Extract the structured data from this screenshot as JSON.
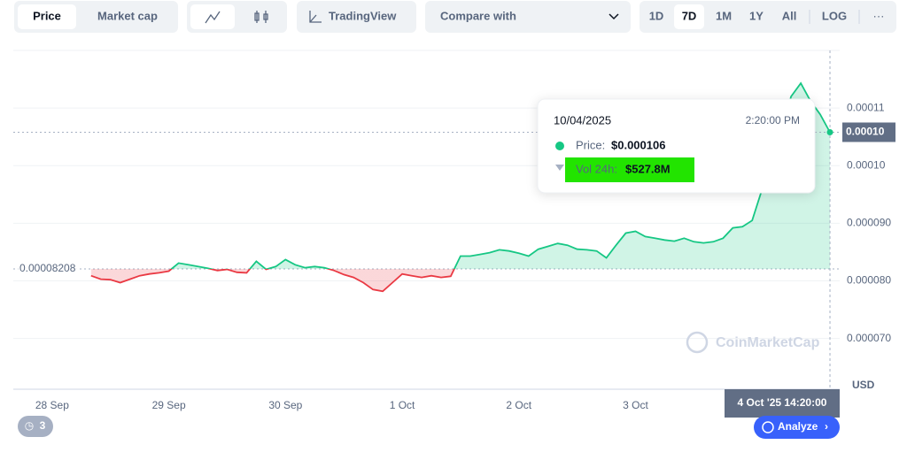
{
  "toolbar": {
    "tabs": [
      "Price",
      "Market cap"
    ],
    "tradingview": "TradingView",
    "compare": "Compare with",
    "ranges": [
      "1D",
      "7D",
      "1M",
      "1Y",
      "All"
    ],
    "log": "LOG",
    "more": "···"
  },
  "chart_data": {
    "type": "line",
    "values": [
      8.09e-05,
      8.03e-05,
      8.02e-05,
      7.97e-05,
      8.03e-05,
      8.09e-05,
      8.12e-05,
      8.14e-05,
      8.17e-05,
      8.31e-05,
      8.28e-05,
      8.25e-05,
      8.22e-05,
      8.18e-05,
      8.2e-05,
      8.15e-05,
      8.14e-05,
      8.34e-05,
      8.2e-05,
      8.25e-05,
      8.37e-05,
      8.28e-05,
      8.23e-05,
      8.25e-05,
      8.23e-05,
      8.18e-05,
      8.11e-05,
      8.06e-05,
      7.97e-05,
      7.85e-05,
      7.82e-05,
      7.97e-05,
      8.12e-05,
      8.09e-05,
      8.06e-05,
      8.09e-05,
      8.06e-05,
      8.08e-05,
      8.43e-05,
      8.43e-05,
      8.46e-05,
      8.49e-05,
      8.54e-05,
      8.52e-05,
      8.48e-05,
      8.43e-05,
      8.55e-05,
      8.6e-05,
      8.65e-05,
      8.62e-05,
      8.55e-05,
      8.54e-05,
      8.52e-05,
      8.4e-05,
      8.62e-05,
      8.83e-05,
      8.86e-05,
      8.77e-05,
      8.74e-05,
      8.71e-05,
      8.69e-05,
      8.74e-05,
      8.68e-05,
      8.66e-05,
      8.68e-05,
      8.74e-05,
      8.92e-05,
      8.94e-05,
      9.05e-05,
      9.58e-05,
      0.0001012,
      0.0001058,
      0.000112,
      0.0001143,
      0.0001112,
      0.0001089,
      0.0001058
    ],
    "xlim": [
      -8,
      77
    ],
    "xticks": [
      {
        "value": -4,
        "label": "28 Sep"
      },
      {
        "value": 8,
        "label": "29 Sep"
      },
      {
        "value": 20,
        "label": "30 Sep"
      },
      {
        "value": 32,
        "label": "1 Oct"
      },
      {
        "value": 44,
        "label": "2 Oct"
      },
      {
        "value": 56,
        "label": "3 Oct"
      }
    ],
    "ylim": [
      6.12e-05,
      0.00012
    ],
    "yticks": [
      {
        "value": 7e-05,
        "label": "0.000070"
      },
      {
        "value": 8e-05,
        "label": "0.000080"
      },
      {
        "value": 9e-05,
        "label": "0.000090"
      },
      {
        "value": 0.0001,
        "label": "0.00010"
      },
      {
        "value": 0.00011,
        "label": "0.00011"
      }
    ],
    "baseline": {
      "value": 8.208e-05,
      "label": "0.00008208"
    },
    "current_label": "0.00010",
    "up_color": "#16c784",
    "down_color": "#ea3943",
    "grid": true,
    "unit": "USD",
    "crosshair_label": "4 Oct '25 14:20:00",
    "watermark": "CoinMarketCap"
  },
  "tooltip": {
    "date": "10/04/2025",
    "time": "2:20:00 PM",
    "price_label": "Price:",
    "price": "$0.000106",
    "vol_label": "Vol 24h:",
    "vol": "$527.8M"
  },
  "buttons": {
    "analyze": "Analyze",
    "history_count": "3"
  }
}
